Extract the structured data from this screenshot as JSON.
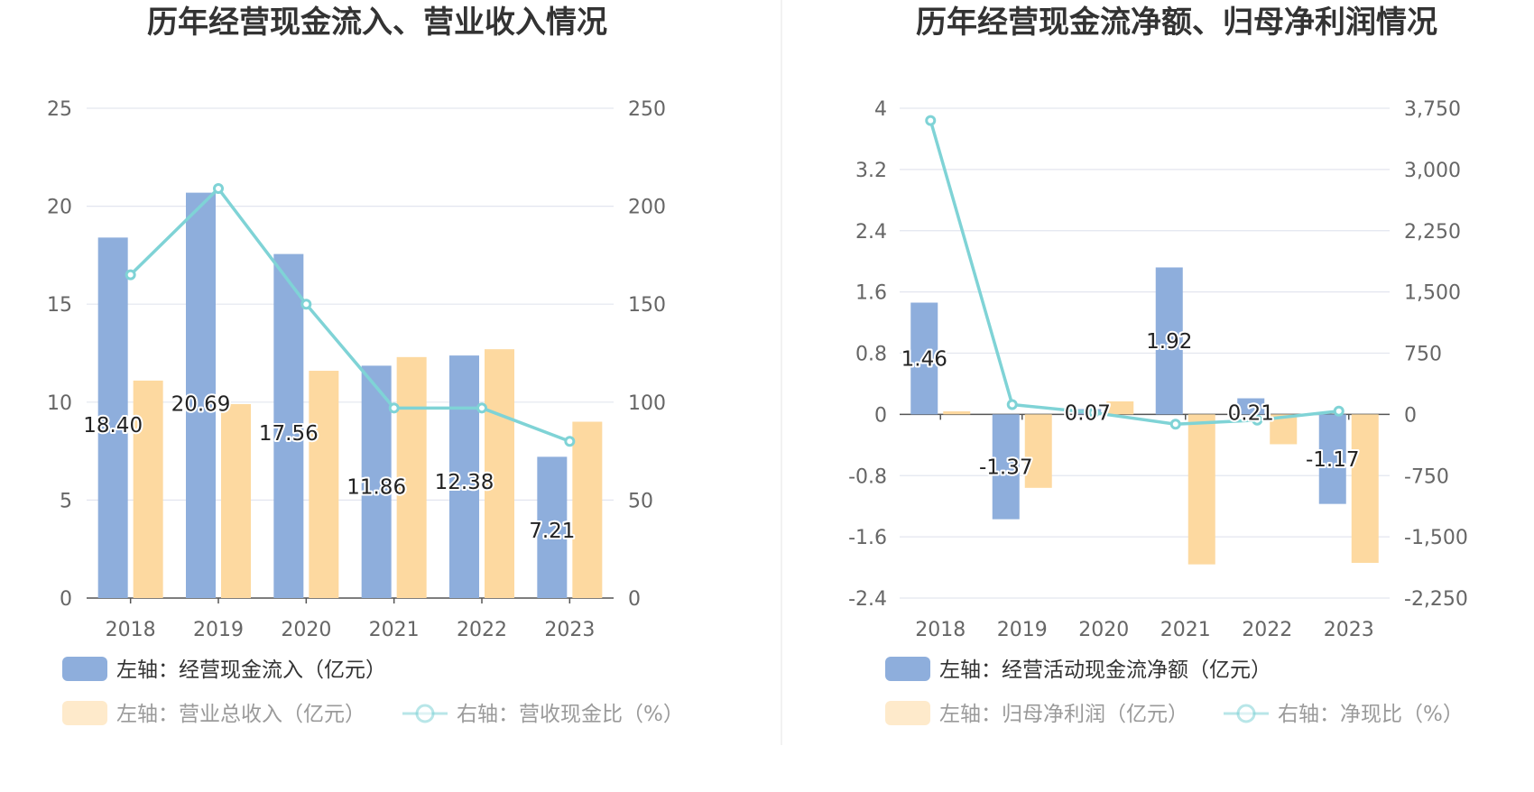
{
  "chart_data": [
    {
      "type": "bar",
      "title": "历年经营现金流入、营业收入情况",
      "categories": [
        "2018",
        "2019",
        "2020",
        "2021",
        "2022",
        "2023"
      ],
      "y_left": {
        "ticks": [
          "0",
          "5",
          "10",
          "15",
          "20",
          "25"
        ],
        "ylim": [
          0,
          25
        ]
      },
      "y_right": {
        "ticks": [
          "0",
          "50",
          "100",
          "150",
          "200",
          "250"
        ],
        "ylim": [
          0,
          250
        ]
      },
      "series": [
        {
          "name": "左轴：经营现金流入（亿元）",
          "type": "bar",
          "axis": "left",
          "color": "#8eaedc",
          "values": [
            18.4,
            20.69,
            17.56,
            11.86,
            12.38,
            7.21
          ],
          "labels": [
            "18.40",
            "20.69",
            "17.56",
            "11.86",
            "12.38",
            "7.21"
          ]
        },
        {
          "name": "左轴：营业总收入（亿元）",
          "type": "bar",
          "axis": "left",
          "color": "#fdd9a0",
          "values": [
            11.1,
            9.9,
            11.6,
            12.3,
            12.7,
            9.0
          ]
        },
        {
          "name": "右轴：营收现金比（%）",
          "type": "line",
          "axis": "right",
          "color": "#7fd3d6",
          "values": [
            165,
            209,
            150,
            97,
            97,
            80
          ]
        }
      ],
      "legend": "bottom"
    },
    {
      "type": "bar",
      "title": "历年经营现金流净额、归母净利润情况",
      "categories": [
        "2018",
        "2019",
        "2020",
        "2021",
        "2022",
        "2023"
      ],
      "y_left": {
        "ticks": [
          "-2.4",
          "-1.6",
          "-0.8",
          "0",
          "0.8",
          "1.6",
          "2.4",
          "3.2",
          "4"
        ],
        "ylim": [
          -2.4,
          4
        ]
      },
      "y_right": {
        "ticks": [
          "-2,250",
          "-1,500",
          "-750",
          "0",
          "750",
          "1,500",
          "2,250",
          "3,000",
          "3,750"
        ],
        "ylim": [
          -2250,
          3750
        ]
      },
      "series": [
        {
          "name": "左轴：经营活动现金流净额（亿元）",
          "type": "bar",
          "axis": "left",
          "color": "#8eaedc",
          "values": [
            1.46,
            -1.37,
            0.07,
            1.92,
            0.21,
            -1.17
          ],
          "labels": [
            "1.46",
            "-1.37",
            "0.07",
            "1.92",
            "0.21",
            "-1.17"
          ]
        },
        {
          "name": "左轴：归母净利润（亿元）",
          "type": "bar",
          "axis": "left",
          "color": "#fdd9a0",
          "values": [
            0.04,
            -0.96,
            0.17,
            -1.96,
            -0.39,
            -1.94
          ]
        },
        {
          "name": "右轴：净现比（%）",
          "type": "line",
          "axis": "right",
          "color": "#7fd3d6",
          "values": [
            3600,
            120,
            20,
            -120,
            -70,
            40
          ]
        }
      ],
      "legend": "bottom"
    }
  ]
}
